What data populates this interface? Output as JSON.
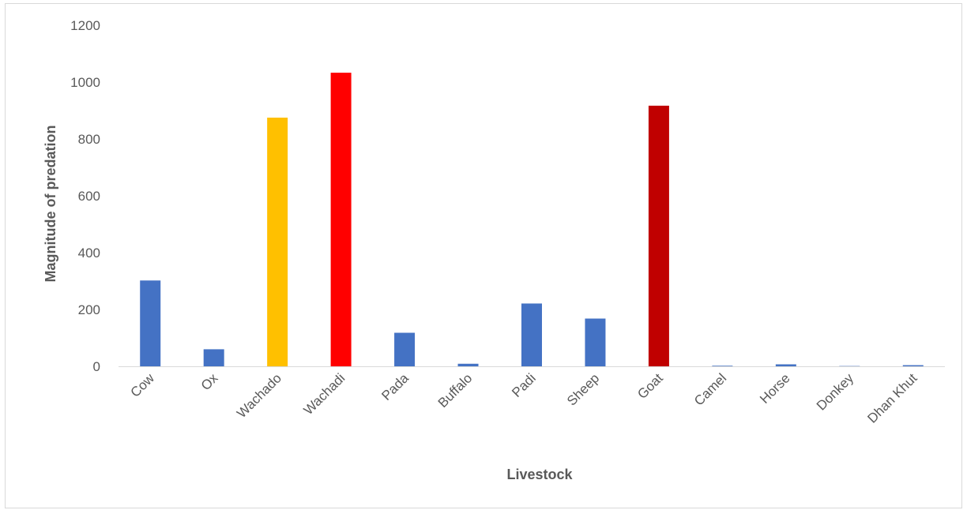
{
  "chart_data": {
    "type": "bar",
    "title": "",
    "xlabel": "Livestock",
    "ylabel": "Magnitude of predation",
    "ylim": [
      0,
      1200
    ],
    "yticks": [
      0,
      200,
      400,
      600,
      800,
      1000,
      1200
    ],
    "grid": false,
    "legend": "none",
    "categories": [
      "Cow",
      "Ox",
      "Wachado",
      "Wachadi",
      "Pada",
      "Buffalo",
      "Padi",
      "Sheep",
      "Goat",
      "Camel",
      "Horse",
      "Donkey",
      "Dhan Khut"
    ],
    "values": [
      302,
      60,
      875,
      1033,
      118,
      9,
      221,
      168,
      917,
      2,
      7,
      1,
      4
    ],
    "colors": [
      "#4472C4",
      "#4472C4",
      "#FFC000",
      "#FF0000",
      "#4472C4",
      "#4472C4",
      "#4472C4",
      "#4472C4",
      "#C00000",
      "#4472C4",
      "#4472C4",
      "#4472C4",
      "#4472C4"
    ],
    "axis_line_color": "#D9D9D9"
  }
}
